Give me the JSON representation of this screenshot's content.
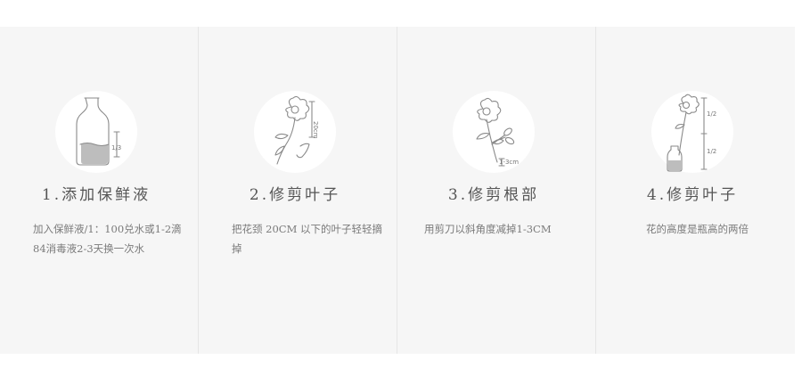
{
  "steps": [
    {
      "title": "1.添加保鲜液",
      "description": "加入保鲜液/1：100兑水或1-2滴84消毒液2-3天换一次水",
      "icon": "bottle-icon",
      "icon_labels": [
        "1/3"
      ]
    },
    {
      "title": "2.修剪叶子",
      "description": "把花颈 20CM 以下的叶子轻轻摘掉",
      "icon": "flower-hand-icon",
      "icon_labels": [
        "20cm"
      ]
    },
    {
      "title": "3.修剪根部",
      "description": "用剪刀以斜角度减掉1-3CM",
      "icon": "flower-scissors-icon",
      "icon_labels": [
        "1-3cm"
      ]
    },
    {
      "title": "4.修剪叶子",
      "description": "花的高度是瓶高的两倍",
      "icon": "flower-vase-icon",
      "icon_labels": [
        "1/2",
        "1/2"
      ]
    }
  ]
}
